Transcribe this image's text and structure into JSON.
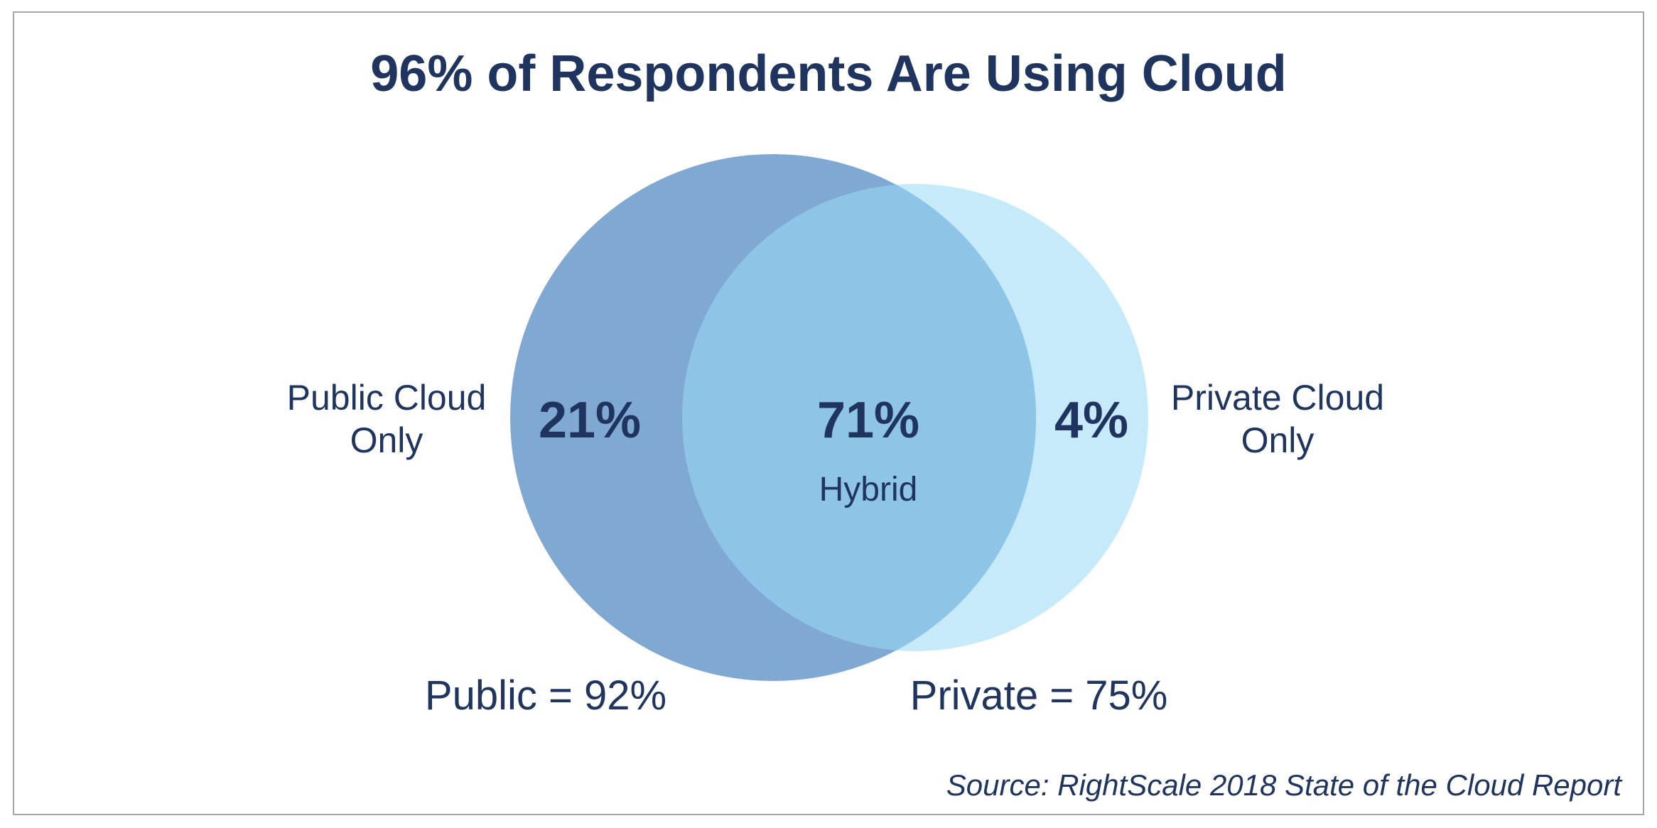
{
  "title": "96% of Respondents Are Using Cloud",
  "venn": {
    "public_only_label": "Public Cloud Only",
    "public_only_label_line1": "Public Cloud",
    "public_only_label_line2": "Only",
    "public_only_value": "21%",
    "hybrid_value": "71%",
    "hybrid_label": "Hybrid",
    "private_only_value": "4%",
    "private_only_label": "Private Cloud Only",
    "private_only_label_line1": "Private Cloud",
    "private_only_label_line2": "Only",
    "public_total": "Public = 92%",
    "private_total": "Private = 75%"
  },
  "colors": {
    "public_circle": "#7fa9d2",
    "private_circle": "#c7eafb",
    "overlap": "#8ec4e6",
    "text": "#1f3560",
    "border": "#a6a6a6"
  },
  "source": "Source: RightScale 2018 State of the Cloud Report"
}
